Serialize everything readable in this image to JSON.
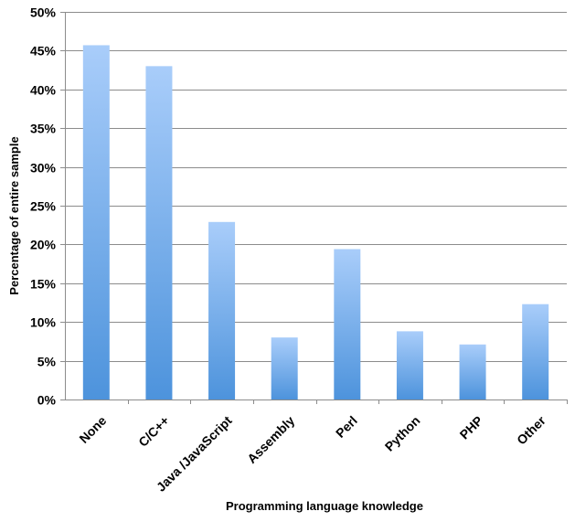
{
  "chart_data": {
    "type": "bar",
    "categories": [
      "None",
      "C/C++",
      "Java /JavaScript",
      "Assembly",
      "Perl",
      "Python",
      "PHP",
      "Other"
    ],
    "values": [
      45.7,
      43.0,
      22.9,
      8.0,
      19.4,
      8.8,
      7.1,
      12.3
    ],
    "unit": "%",
    "xlabel": "Programming language knowledge",
    "ylabel": "Percentage of entire sample",
    "ylim": [
      0,
      50
    ],
    "yticks": [
      0,
      5,
      10,
      15,
      20,
      25,
      30,
      35,
      40,
      45,
      50
    ],
    "ytick_labels": [
      "0%",
      "5%",
      "10%",
      "15%",
      "20%",
      "25%",
      "30%",
      "35%",
      "40%",
      "45%",
      "50%"
    ],
    "grid": true,
    "legend": "none",
    "bar_color_top": "#a9cdfa",
    "bar_color_bottom": "#4d93dc",
    "gridline_color": "#8c8c8c"
  }
}
